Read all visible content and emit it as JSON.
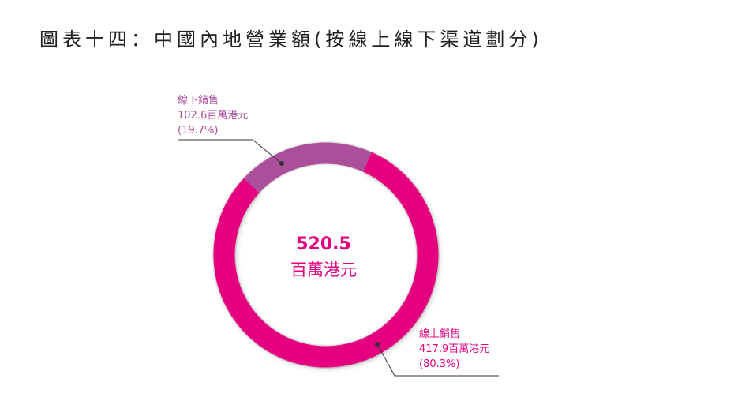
{
  "title": "圖表十四：中國內地營業額(按線上線下渠道劃分)",
  "colors": {
    "online": "#e5007f",
    "offline": "#ac4f9b",
    "leader": "#333333",
    "track": "#e4e4e4",
    "title": "#222222"
  },
  "chart_data": {
    "type": "pie",
    "variant": "donut",
    "total": {
      "value": "520.5",
      "unit": "百萬港元"
    },
    "slices": [
      {
        "name": "線上銷售",
        "value": 417.9,
        "value_text": "417.9百萬港元",
        "percent": 80.3,
        "percent_text": "(80.3%)",
        "color": "#e5007f"
      },
      {
        "name": "線下銷售",
        "value": 102.6,
        "value_text": "102.6百萬港元",
        "percent": 19.7,
        "percent_text": "(19.7%)",
        "color": "#ac4f9b"
      }
    ]
  }
}
